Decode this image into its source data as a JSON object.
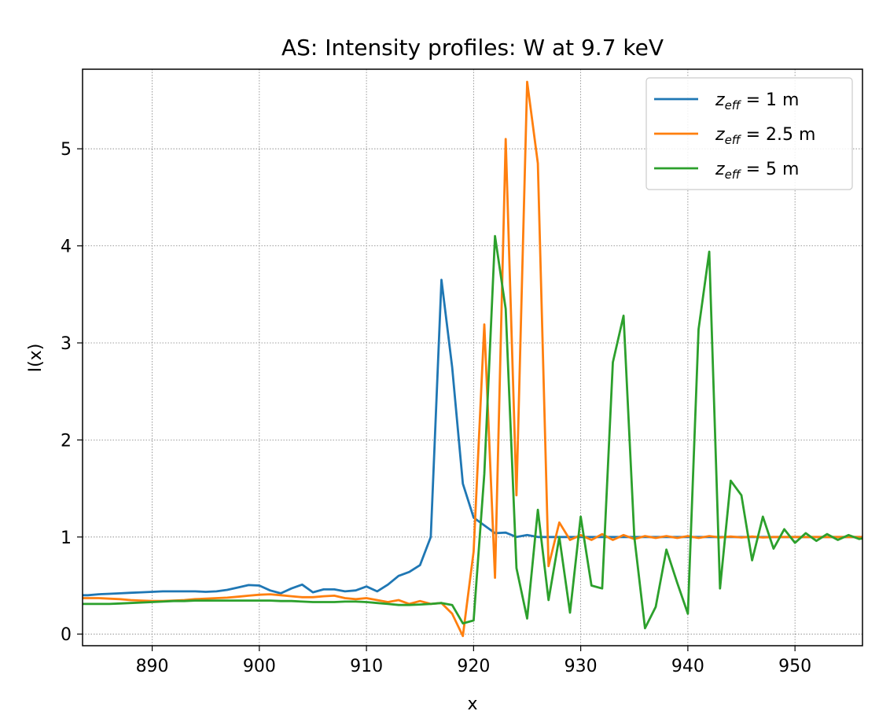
{
  "chart_data": {
    "type": "line",
    "title": "AS: Intensity profiles: W at 9.7 keV",
    "xlabel": "x",
    "ylabel": "I(x)",
    "xlim": [
      883.5,
      956.3
    ],
    "ylim": [
      -0.12,
      5.82
    ],
    "xticks": [
      890,
      900,
      910,
      920,
      930,
      940,
      950
    ],
    "yticks": [
      0,
      1,
      2,
      3,
      4,
      5
    ],
    "grid": true,
    "legend_position": "upper right",
    "x": [
      883,
      884,
      885,
      886,
      887,
      888,
      889,
      890,
      891,
      892,
      893,
      894,
      895,
      896,
      897,
      898,
      899,
      900,
      901,
      902,
      903,
      904,
      905,
      906,
      907,
      908,
      909,
      910,
      911,
      912,
      913,
      914,
      915,
      916,
      917,
      918,
      919,
      920,
      921,
      922,
      923,
      924,
      925,
      926,
      927,
      928,
      929,
      930,
      931,
      932,
      933,
      934,
      935,
      936,
      937,
      938,
      939,
      940,
      941,
      942,
      943,
      944,
      945,
      946,
      947,
      948,
      949,
      950,
      951,
      952,
      953,
      954,
      955,
      956,
      957
    ],
    "series": [
      {
        "name": "z_eff = 1 m",
        "legend_label": {
          "z": "z",
          "sub": "eff",
          "rest": " = 1 m"
        },
        "color": "#1f77b4",
        "values": [
          0.4,
          0.4,
          0.41,
          0.415,
          0.42,
          0.425,
          0.43,
          0.435,
          0.44,
          0.44,
          0.44,
          0.44,
          0.435,
          0.44,
          0.455,
          0.48,
          0.505,
          0.5,
          0.45,
          0.42,
          0.47,
          0.51,
          0.43,
          0.46,
          0.46,
          0.44,
          0.45,
          0.49,
          0.44,
          0.51,
          0.6,
          0.64,
          0.71,
          1.0,
          3.65,
          2.75,
          1.55,
          1.2,
          1.12,
          1.04,
          1.045,
          1.0,
          1.02,
          1.0,
          1.0,
          1.0,
          1.0,
          1.0,
          1.0,
          1.0,
          1.0,
          1.0,
          1.0,
          1.0,
          1.0,
          1.0,
          1.0,
          1.0,
          1.0,
          1.0,
          1.0,
          1.0,
          1.0,
          1.0,
          1.0,
          1.0,
          1.0,
          1.0,
          1.0,
          1.0,
          1.0,
          1.0,
          1.0,
          1.0,
          1.0
        ]
      },
      {
        "name": "z_eff = 2.5 m",
        "legend_label": {
          "z": "z",
          "sub": "eff",
          "rest": " = 2.5 m"
        },
        "color": "#ff7f0e",
        "values": [
          0.37,
          0.37,
          0.37,
          0.365,
          0.36,
          0.35,
          0.345,
          0.34,
          0.34,
          0.345,
          0.35,
          0.36,
          0.365,
          0.37,
          0.375,
          0.385,
          0.395,
          0.405,
          0.41,
          0.4,
          0.39,
          0.38,
          0.38,
          0.39,
          0.395,
          0.37,
          0.36,
          0.37,
          0.35,
          0.33,
          0.35,
          0.31,
          0.34,
          0.31,
          0.32,
          0.21,
          -0.02,
          0.85,
          3.19,
          0.58,
          5.1,
          1.43,
          5.69,
          4.85,
          0.7,
          1.15,
          0.97,
          1.02,
          0.97,
          1.03,
          0.97,
          1.02,
          0.98,
          1.01,
          0.99,
          1.01,
          0.99,
          1.01,
          0.99,
          1.01,
          0.995,
          1.005,
          0.995,
          1.005,
          0.995,
          1.0,
          1.0,
          1.0,
          1.0,
          1.0,
          1.0,
          1.0,
          1.0,
          1.0,
          1.0
        ]
      },
      {
        "name": "z_eff = 5 m",
        "legend_label": {
          "z": "z",
          "sub": "eff",
          "rest": " = 5 m"
        },
        "color": "#2ca02c",
        "values": [
          0.31,
          0.31,
          0.31,
          0.31,
          0.315,
          0.32,
          0.325,
          0.33,
          0.335,
          0.34,
          0.34,
          0.345,
          0.345,
          0.345,
          0.345,
          0.345,
          0.345,
          0.345,
          0.345,
          0.34,
          0.34,
          0.335,
          0.33,
          0.33,
          0.33,
          0.335,
          0.335,
          0.33,
          0.32,
          0.31,
          0.3,
          0.3,
          0.305,
          0.31,
          0.32,
          0.3,
          0.11,
          0.14,
          1.65,
          4.1,
          3.35,
          0.68,
          0.16,
          1.28,
          0.35,
          1.0,
          0.22,
          1.21,
          0.5,
          0.47,
          2.8,
          3.28,
          1.0,
          0.06,
          0.28,
          0.87,
          0.53,
          0.21,
          3.14,
          3.94,
          0.47,
          1.58,
          1.43,
          0.76,
          1.21,
          0.88,
          1.08,
          0.94,
          1.04,
          0.96,
          1.03,
          0.97,
          1.02,
          0.98,
          1.0
        ]
      }
    ]
  }
}
